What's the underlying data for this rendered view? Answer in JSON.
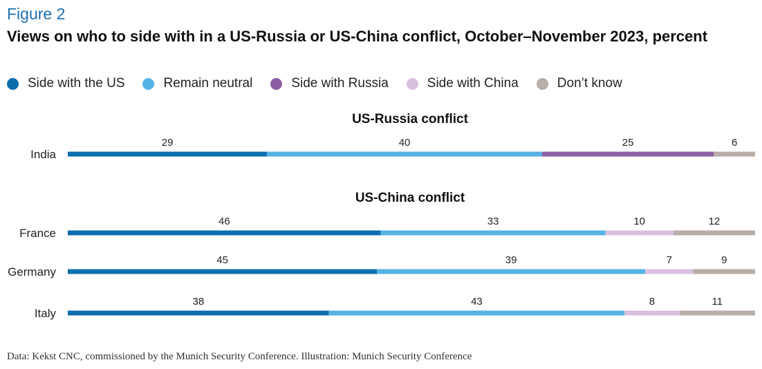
{
  "figure": {
    "label": "Figure 2",
    "title": "Views on who to side with in a US-Russia or US-China conflict, October–November 2023, percent",
    "source": "Data: Kekst CNC, commissioned by the Munich Security Conference. Illustration: Munich Security Conference"
  },
  "legend": [
    {
      "label": "Side with the US",
      "color": "#0d6eae"
    },
    {
      "label": "Remain neutral",
      "color": "#55b3e3"
    },
    {
      "label": "Side with Russia",
      "color": "#8c5fa3"
    },
    {
      "label": "Side with China",
      "color": "#d9bfe0"
    },
    {
      "label": "Don’t know",
      "color": "#b8aea7"
    }
  ],
  "chart_data": {
    "type": "bar",
    "orientation": "horizontal",
    "stacked": true,
    "xlim": [
      0,
      100
    ],
    "groups": [
      {
        "title": "US-Russia conflict",
        "rows": [
          {
            "category": "India",
            "segments": [
              {
                "series": "Side with the US",
                "value": 29
              },
              {
                "series": "Remain neutral",
                "value": 40
              },
              {
                "series": "Side with Russia",
                "value": 25
              },
              {
                "series": "Don’t know",
                "value": 6
              }
            ]
          }
        ]
      },
      {
        "title": "US-China conflict",
        "rows": [
          {
            "category": "France",
            "segments": [
              {
                "series": "Side with the US",
                "value": 46
              },
              {
                "series": "Remain neutral",
                "value": 33
              },
              {
                "series": "Side with China",
                "value": 10
              },
              {
                "series": "Don’t know",
                "value": 12
              }
            ]
          },
          {
            "category": "Germany",
            "segments": [
              {
                "series": "Side with the US",
                "value": 45
              },
              {
                "series": "Remain neutral",
                "value": 39
              },
              {
                "series": "Side with China",
                "value": 7
              },
              {
                "series": "Don’t know",
                "value": 9
              }
            ]
          },
          {
            "category": "Italy",
            "segments": [
              {
                "series": "Side with the US",
                "value": 38
              },
              {
                "series": "Remain neutral",
                "value": 43
              },
              {
                "series": "Side with China",
                "value": 8
              },
              {
                "series": "Don’t know",
                "value": 11
              }
            ]
          }
        ]
      }
    ]
  }
}
